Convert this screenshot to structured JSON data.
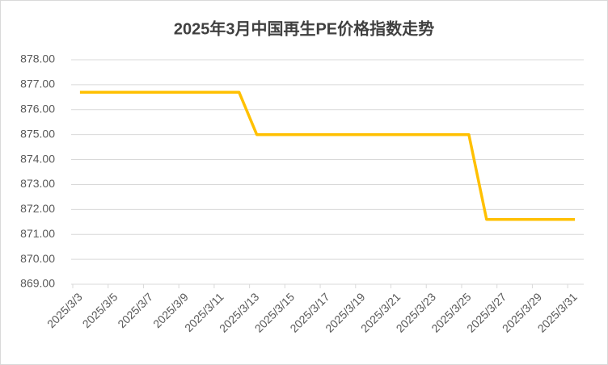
{
  "chart_data": {
    "type": "line",
    "title": "2025年3月中国再生PE价格指数走势",
    "categories": [
      "2025/3/3",
      null,
      "2025/3/5",
      null,
      "2025/3/7",
      null,
      "2025/3/9",
      null,
      "2025/3/11",
      null,
      "2025/3/13",
      null,
      "2025/3/15",
      null,
      "2025/3/17",
      null,
      "2025/3/19",
      null,
      "2025/3/21",
      null,
      "2025/3/23",
      null,
      "2025/3/25",
      null,
      "2025/3/27",
      null,
      "2025/3/29",
      null,
      "2025/3/31"
    ],
    "values": [
      876.7,
      876.7,
      876.7,
      876.7,
      876.7,
      876.7,
      876.7,
      876.7,
      876.7,
      876.7,
      875.0,
      875.0,
      875.0,
      875.0,
      875.0,
      875.0,
      875.0,
      875.0,
      875.0,
      875.0,
      875.0,
      875.0,
      875.0,
      871.6,
      871.6,
      871.6,
      871.6,
      871.6,
      871.6
    ],
    "color": "#ffc000",
    "ylim": [
      869,
      878
    ],
    "yticks": [
      {
        "value": 869,
        "label": "869.00"
      },
      {
        "value": 870,
        "label": "870.00"
      },
      {
        "value": 871,
        "label": "871.00"
      },
      {
        "value": 872,
        "label": "872.00"
      },
      {
        "value": 873,
        "label": "873.00"
      },
      {
        "value": 874,
        "label": "874.00"
      },
      {
        "value": 875,
        "label": "875.00"
      },
      {
        "value": 876,
        "label": "876.00"
      },
      {
        "value": 877,
        "label": "877.00"
      },
      {
        "value": 878,
        "label": "878.00"
      }
    ],
    "grid": true
  }
}
